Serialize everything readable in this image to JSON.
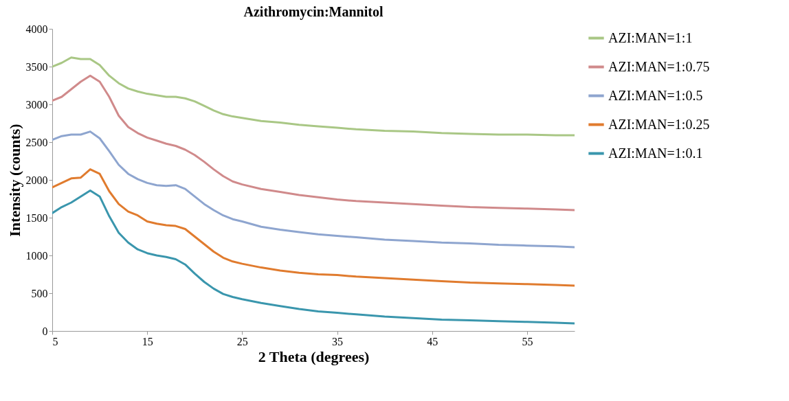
{
  "chart_data": {
    "type": "line",
    "title": "Azithromycin:Mannitol",
    "xlabel": "2 Theta (degrees)",
    "ylabel": "Intensity (counts)",
    "x": [
      5,
      6,
      7,
      8,
      9,
      10,
      11,
      12,
      13,
      14,
      15,
      16,
      17,
      18,
      19,
      20,
      21,
      22,
      23,
      24,
      25,
      27,
      29,
      31,
      33,
      35,
      37,
      40,
      43,
      46,
      49,
      52,
      55,
      58,
      60
    ],
    "xlim": [
      5,
      60
    ],
    "xticks": [
      5,
      15,
      25,
      35,
      45,
      55
    ],
    "ylim": [
      0,
      4000
    ],
    "yticks": [
      0,
      500,
      1000,
      1500,
      2000,
      2500,
      3000,
      3500,
      4000
    ],
    "grid": false,
    "legend": "right",
    "marker": "none",
    "line_style": "solid",
    "series": [
      {
        "name": "AZI:MAN=1:1",
        "color": "#a9c785",
        "values": [
          3500,
          3550,
          3620,
          3600,
          3600,
          3520,
          3380,
          3280,
          3210,
          3170,
          3140,
          3120,
          3100,
          3100,
          3080,
          3040,
          2980,
          2920,
          2870,
          2840,
          2820,
          2780,
          2760,
          2730,
          2710,
          2690,
          2670,
          2650,
          2640,
          2620,
          2610,
          2600,
          2600,
          2590,
          2590
        ]
      },
      {
        "name": "AZI:MAN=1:0.75",
        "color": "#d08a8b",
        "values": [
          3050,
          3100,
          3200,
          3300,
          3380,
          3300,
          3100,
          2850,
          2700,
          2620,
          2560,
          2520,
          2480,
          2450,
          2400,
          2330,
          2240,
          2140,
          2050,
          1980,
          1940,
          1880,
          1840,
          1800,
          1770,
          1740,
          1720,
          1700,
          1680,
          1660,
          1640,
          1630,
          1620,
          1610,
          1600
        ]
      },
      {
        "name": "AZI:MAN=1:0.5",
        "color": "#8ea5cf",
        "values": [
          2530,
          2580,
          2600,
          2600,
          2640,
          2550,
          2380,
          2200,
          2080,
          2010,
          1960,
          1930,
          1920,
          1930,
          1880,
          1780,
          1680,
          1600,
          1530,
          1480,
          1450,
          1380,
          1340,
          1310,
          1280,
          1260,
          1240,
          1210,
          1190,
          1170,
          1160,
          1140,
          1130,
          1120,
          1110
        ]
      },
      {
        "name": "AZI:MAN=1:0.25",
        "color": "#e07b2e",
        "values": [
          1900,
          1960,
          2020,
          2030,
          2140,
          2080,
          1850,
          1680,
          1580,
          1530,
          1450,
          1420,
          1400,
          1390,
          1350,
          1250,
          1150,
          1050,
          970,
          920,
          890,
          840,
          800,
          770,
          750,
          740,
          720,
          700,
          680,
          660,
          640,
          630,
          620,
          610,
          600
        ]
      },
      {
        "name": "AZI:MAN=1:0.1",
        "color": "#3a96ad",
        "values": [
          1560,
          1640,
          1700,
          1780,
          1860,
          1780,
          1520,
          1300,
          1170,
          1080,
          1030,
          1000,
          980,
          950,
          880,
          760,
          650,
          560,
          490,
          450,
          420,
          370,
          330,
          290,
          260,
          240,
          220,
          190,
          170,
          150,
          140,
          130,
          120,
          110,
          100
        ]
      }
    ]
  }
}
